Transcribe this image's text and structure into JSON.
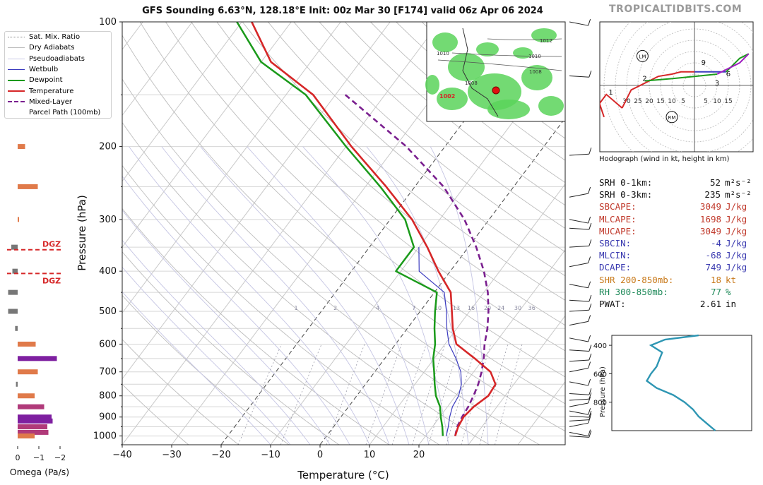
{
  "title": "GFS Sounding 6.63°N, 128.18°E Init: 00z Mar 30 [F174] valid 06z Apr 06 2024",
  "brand": "TROPICALTIDBITS.COM",
  "colors": {
    "temperature": "#d62728",
    "dewpoint": "#1a9a1a",
    "wetbulb": "#3b3bbf",
    "parcel": "#7a1f8f",
    "pwat_profile": "#2e96b3"
  },
  "legend": [
    {
      "label": "Sat. Mix. Ratio",
      "style": "dotted-gray"
    },
    {
      "label": "Dry Adiabats",
      "style": "thin-gray"
    },
    {
      "label": "Pseudoadiabats",
      "style": "thin-gray"
    },
    {
      "label": "Wetbulb",
      "style": "blue"
    },
    {
      "label": "Dewpoint",
      "style": "green"
    },
    {
      "label": "Temperature",
      "style": "red"
    },
    {
      "label": "Mixed-Layer",
      "style": "purple-dashed"
    },
    {
      "label": "Parcel Path (100mb)",
      "style": "none"
    }
  ],
  "chart_data": [
    {
      "type": "line",
      "name": "skew-t",
      "xlabel": "Temperature (°C)",
      "ylabel": "Pressure (hPa)",
      "xlim": [
        -40,
        50
      ],
      "ylim": [
        1050,
        100
      ],
      "y_scale": "log",
      "x_ticks": [
        "−40",
        "−30",
        "−20",
        "−10",
        "0",
        "10",
        "20"
      ],
      "x_tick_values": [
        -40,
        -30,
        -20,
        -10,
        0,
        10,
        20
      ],
      "y_ticks": [
        "100",
        "200",
        "300",
        "400",
        "500",
        "600",
        "700",
        "800",
        "900",
        "1000"
      ],
      "y_tick_values": [
        100,
        200,
        300,
        400,
        500,
        600,
        700,
        800,
        900,
        1000
      ],
      "mixing_ratio_labels": [
        "1",
        "2",
        "4",
        "7",
        "10",
        "13",
        "16",
        "20",
        "24",
        "30",
        "36"
      ],
      "series": [
        {
          "name": "Temperature",
          "p": [
            1000,
            950,
            900,
            850,
            800,
            750,
            700,
            650,
            600,
            550,
            500,
            450,
            400,
            350,
            300,
            250,
            200,
            150,
            125,
            100
          ],
          "t": [
            26,
            25.2,
            24.8,
            25.3,
            26.6,
            26.3,
            23.4,
            18.2,
            12.3,
            9.2,
            6.4,
            3.3,
            -2.4,
            -8.3,
            -15.6,
            -25.8,
            -38.9,
            -54.5,
            -68,
            -78
          ]
        },
        {
          "name": "Dewpoint",
          "p": [
            1000,
            950,
            900,
            850,
            800,
            750,
            700,
            650,
            600,
            550,
            500,
            450,
            400,
            350,
            300,
            250,
            200,
            150,
            125,
            100
          ],
          "td": [
            23.5,
            22,
            20.2,
            18.5,
            16,
            14,
            12,
            9.8,
            8,
            5.5,
            3,
            0.5,
            -11,
            -11,
            -17,
            -27,
            -40,
            -56,
            -70,
            -81
          ]
        },
        {
          "name": "Wetbulb",
          "p": [
            1000,
            950,
            900,
            850,
            800,
            750,
            700,
            650,
            600,
            550,
            500,
            450,
            400,
            350
          ],
          "tw": [
            24.2,
            23.2,
            22,
            21,
            20.6,
            19.4,
            17.4,
            14.4,
            10.8,
            8,
            5.3,
            2,
            -6.3,
            -10
          ]
        },
        {
          "name": "Mixed-Layer Parcel Path (100mb)",
          "p": [
            1000,
            950,
            900,
            850,
            800,
            750,
            700,
            650,
            600,
            550,
            500,
            450,
            400,
            350,
            300,
            250,
            200,
            150
          ],
          "t": [
            26,
            25,
            24.5,
            24.2,
            23.6,
            22.8,
            21.6,
            20,
            18,
            16.2,
            13.8,
            10.8,
            6.8,
            1.6,
            -5,
            -14.2,
            -27.8,
            -48
          ]
        }
      ]
    },
    {
      "type": "bar",
      "name": "omega",
      "xlabel": "Omega (Pa/s)",
      "x_ticks": [
        "0",
        "−1",
        "−2"
      ],
      "x_tick_values": [
        0,
        -1,
        -2
      ],
      "dgz_label": "DGZ",
      "dgz_levels": [
        355,
        405
      ],
      "p": [
        200,
        250,
        300,
        350,
        400,
        450,
        500,
        550,
        600,
        650,
        700,
        750,
        800,
        850,
        900,
        920,
        950,
        980,
        1000
      ],
      "omega": [
        -0.35,
        -0.95,
        -0.05,
        0.3,
        0.25,
        0.45,
        0.45,
        0.12,
        -0.85,
        -1.85,
        -0.95,
        0.08,
        -0.8,
        -1.25,
        -1.6,
        -1.65,
        -1.4,
        -1.45,
        -0.8
      ]
    },
    {
      "type": "line",
      "name": "hodograph",
      "caption": "Hodograph (wind in kt, height in km)",
      "ring_labels": [
        "30",
        "25",
        "20",
        "15",
        "10",
        "5",
        "5",
        "10",
        "15"
      ],
      "markers": [
        "LM",
        "RM"
      ],
      "height_labels": [
        "1",
        "2",
        "3",
        "6",
        "9"
      ],
      "u": [
        -32,
        -28,
        -16,
        -10,
        -6,
        0,
        8,
        14,
        20,
        24,
        20,
        10,
        0,
        -10,
        -22
      ],
      "v": [
        -10,
        -2,
        4,
        5,
        6,
        6,
        6,
        6,
        12,
        14,
        10,
        5,
        4,
        3,
        2
      ]
    },
    {
      "type": "line",
      "name": "inset-profile",
      "ylabel": "Pressure (hPa)",
      "y_ticks": [
        "400",
        "600",
        "800"
      ],
      "y_tick_values": [
        400,
        600,
        800
      ],
      "ylim": [
        1000,
        330
      ],
      "p": [
        330,
        360,
        400,
        450,
        500,
        550,
        600,
        650,
        700,
        750,
        800,
        850,
        900,
        950,
        1000
      ],
      "x": [
        0.62,
        0.38,
        0.28,
        0.36,
        0.34,
        0.32,
        0.28,
        0.25,
        0.32,
        0.44,
        0.52,
        0.58,
        0.62,
        0.68,
        0.74
      ]
    }
  ],
  "stats": [
    {
      "label": "SRH 0-1km:",
      "value": "52",
      "unit": "m²s⁻²",
      "color": "#111111"
    },
    {
      "label": "SRH 0-3km:",
      "value": "235",
      "unit": "m²s⁻²",
      "color": "#111111"
    },
    {
      "label": "SBCAPE:",
      "value": "3049",
      "unit": "J/kg",
      "color": "#c0392b"
    },
    {
      "label": "MLCAPE:",
      "value": "1698",
      "unit": "J/kg",
      "color": "#c0392b"
    },
    {
      "label": "MUCAPE:",
      "value": "3049",
      "unit": "J/kg",
      "color": "#c0392b"
    },
    {
      "label": "SBCIN:",
      "value": "-4",
      "unit": "J/kg",
      "color": "#3a3ab0"
    },
    {
      "label": "MLCIN:",
      "value": "-68",
      "unit": "J/kg",
      "color": "#3a3ab0"
    },
    {
      "label": "DCAPE:",
      "value": "749",
      "unit": "J/kg",
      "color": "#3a3ab0"
    },
    {
      "label": "SHR 200-850mb:",
      "value": "18",
      "unit": "kt",
      "color": "#c8791a"
    },
    {
      "label": "RH 300-850mb:",
      "value": "77",
      "unit": "%",
      "color": "#1f8a5a"
    },
    {
      "label": "PWAT:",
      "value": "2.61",
      "unit": "in",
      "color": "#111111"
    }
  ],
  "map_inset": {
    "isobar_labels": [
      "1012",
      "1010",
      "1008",
      "1010",
      "1008"
    ],
    "low_label": "1002"
  }
}
